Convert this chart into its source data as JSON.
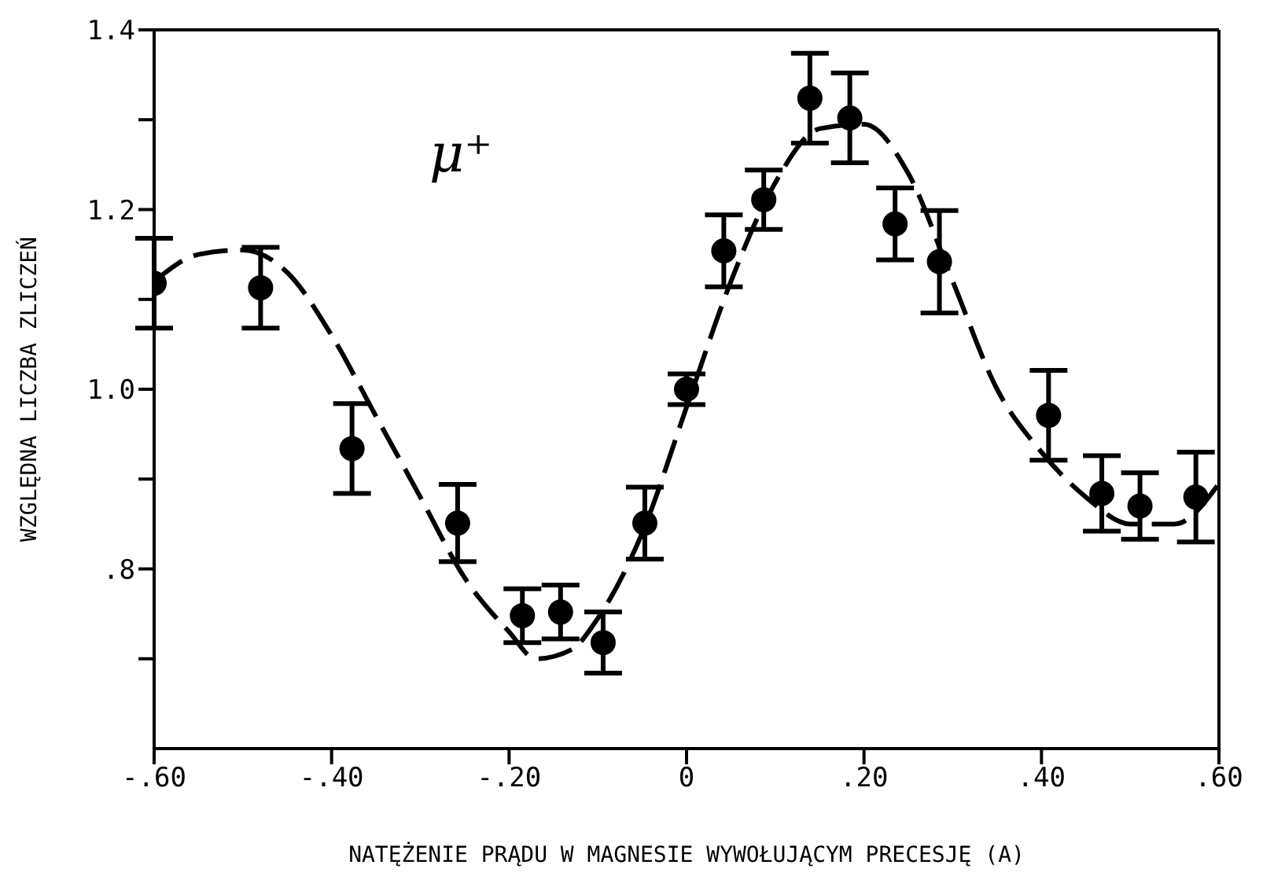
{
  "chart_data": {
    "type": "scatter",
    "xlabel": "NATĘŻENIE PRĄDU W MAGNESIE WYWOŁUJĄCYM PRECESJĘ (A)",
    "ylabel": "WZGLĘDNA LICZBA ZLICZEŃ",
    "annotations": [
      "μ⁺"
    ],
    "x": [
      -0.6,
      -0.48,
      -0.377,
      -0.258,
      -0.185,
      -0.142,
      -0.094,
      -0.047,
      0,
      0.042,
      0.087,
      0.139,
      0.184,
      0.235,
      0.285,
      0.408,
      0.468,
      0.511,
      0.574
    ],
    "series": [
      {
        "type": "scatter",
        "color": "#000000",
        "marker": "circle",
        "values": [
          1.118,
          1.113,
          0.934,
          0.851,
          0.748,
          0.752,
          0.718,
          0.851,
          1.0,
          1.154,
          1.211,
          1.324,
          1.302,
          1.184,
          1.142,
          0.971,
          0.884,
          0.87,
          0.88
        ],
        "errors": [
          0.05,
          0.045,
          0.05,
          0.043,
          0.03,
          0.03,
          0.034,
          0.04,
          0.017,
          0.04,
          0.033,
          0.05,
          0.05,
          0.04,
          0.057,
          0.05,
          0.042,
          0.037,
          0.05
        ]
      },
      {
        "type": "line",
        "color": "#000000",
        "marker": "none",
        "line_style": "dashed",
        "x": [
          -0.6,
          -0.55,
          -0.5,
          -0.45,
          -0.4,
          -0.35,
          -0.3,
          -0.25,
          -0.2,
          -0.17,
          -0.13,
          -0.1,
          -0.05,
          0,
          0.05,
          0.1,
          0.15,
          0.2,
          0.25,
          0.3,
          0.35,
          0.4,
          0.45,
          0.5,
          0.55,
          0.6
        ],
        "values": [
          1.12,
          1.15,
          1.155,
          1.13,
          1.06,
          0.97,
          0.88,
          0.79,
          0.73,
          0.7,
          0.71,
          0.745,
          0.84,
          0.98,
          1.12,
          1.23,
          1.29,
          1.295,
          1.24,
          1.12,
          1.0,
          0.93,
          0.88,
          0.85,
          0.85,
          0.895
        ]
      }
    ],
    "xlim": [
      -0.6,
      0.6
    ],
    "xticks": [
      {
        "value": -0.6,
        "label": "-.60"
      },
      {
        "value": -0.4,
        "label": "-.40"
      },
      {
        "value": -0.2,
        "label": "-.20"
      },
      0,
      {
        "value": 0.2,
        "label": ".20"
      },
      {
        "value": 0.4,
        "label": ".40"
      },
      {
        "value": 0.6,
        "label": ".60"
      }
    ],
    "ylim": [
      0.6,
      1.4
    ],
    "yticks": [
      {
        "value": 0.7,
        "label": null
      },
      {
        "value": 0.8,
        "label": ".8"
      },
      {
        "value": 0.9,
        "label": null
      },
      {
        "value": 1.0,
        "label": "1.0"
      },
      {
        "value": 1.1,
        "label": null
      },
      {
        "value": 1.2,
        "label": "1.2"
      },
      {
        "value": 1.3,
        "label": null
      },
      {
        "value": 1.4,
        "label": "1.4"
      }
    ]
  }
}
